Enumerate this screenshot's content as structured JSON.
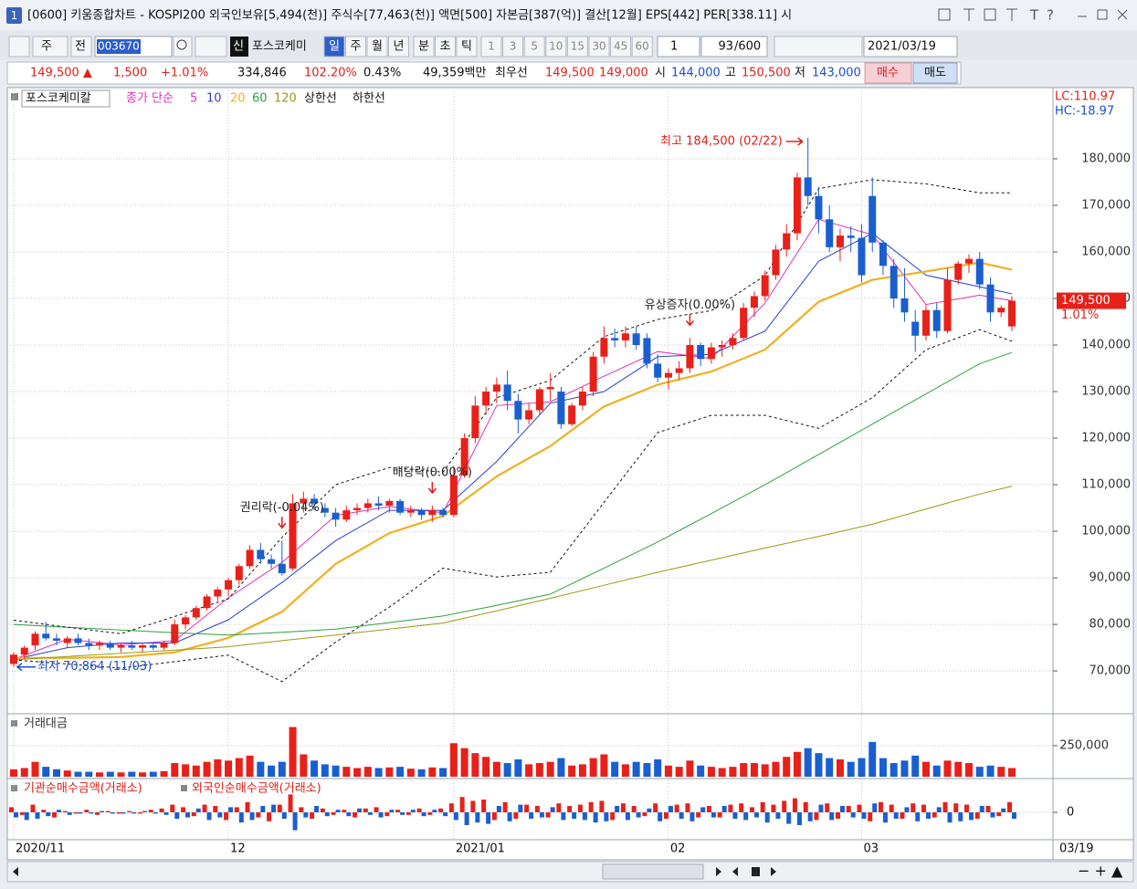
{
  "window": {
    "number": "1",
    "title": "[0600] 키움종합차트 - KOSPI200 외국인보유[5,494(천)] 주식수[77,463(천)] 액면[500] 자본금[387(억)] 결산[12월] EPS[442] PER[338.11] 시"
  },
  "toolbar": {
    "market": "주",
    "scope": "전",
    "code": "003670",
    "credit": "신",
    "name": "포스코케미",
    "periods": [
      "일",
      "주",
      "월",
      "년",
      "분",
      "초",
      "틱"
    ],
    "intervals": [
      "1",
      "3",
      "5",
      "10",
      "15",
      "30",
      "45",
      "60"
    ],
    "multiplier": "1",
    "count": "93",
    "max": "/600",
    "date": "2021/03/19"
  },
  "quote": {
    "price": "149,500 ▲",
    "change": "1,500",
    "change_pct": "+1.01%",
    "volume": "334,846",
    "volume_ratio": "102.20%",
    "turnover": "0.43%",
    "amount": "49,359백만",
    "best_label": "최우선",
    "ask": "149,500",
    "bid": "149,000",
    "open_label": "시",
    "open": "144,000",
    "high_label": "고",
    "high": "150,500",
    "low_label": "저",
    "low": "143,000",
    "buy": "매수",
    "sell": "매도"
  },
  "chart_data": {
    "type": "candlestick",
    "legend_name": "포스코케미칼",
    "ma_label": "종가 단순",
    "lc": "LC:110.97",
    "hc": "HC:-18.97",
    "up_color": "#e8201a",
    "down_color": "#1a5fd0",
    "candles": {
      "open": [
        71500,
        73500,
        75500,
        78000,
        77000,
        76000,
        77000,
        76000,
        75500,
        76000,
        75000,
        75500,
        75000,
        75500,
        75000,
        76000,
        80000,
        81500,
        83500,
        86000,
        87500,
        89500,
        92500,
        96000,
        94000,
        93000,
        92000,
        106000,
        107000,
        105000,
        104000,
        102500,
        104500,
        105000,
        106000,
        105500,
        106500,
        104000,
        104500,
        103500,
        104500,
        103500,
        112000,
        120000,
        127000,
        130000,
        131500,
        128000,
        124000,
        126000,
        130500,
        130000,
        123000,
        127000,
        130000,
        137500,
        141500,
        141000,
        142500,
        141500,
        136000,
        133000,
        134000,
        135000,
        140000,
        137000,
        139500,
        140000,
        141500,
        148000,
        150500,
        155000,
        160500,
        164000,
        176000,
        172000,
        167000,
        161000,
        163500,
        163000,
        172000,
        162000,
        157000,
        150000,
        145000,
        142000,
        147500,
        143000,
        154000,
        157500,
        158500,
        153000,
        147000,
        144000
      ],
      "high": [
        74000,
        75500,
        78500,
        80500,
        78000,
        77500,
        78000,
        77000,
        76500,
        76500,
        76000,
        76500,
        76000,
        76000,
        76500,
        81000,
        82000,
        84000,
        86500,
        88000,
        90000,
        93000,
        97000,
        97500,
        95000,
        98000,
        108000,
        108500,
        108000,
        106000,
        105000,
        105500,
        106000,
        107000,
        107500,
        107000,
        107000,
        105500,
        105000,
        105500,
        105000,
        114000,
        121000,
        129000,
        131000,
        133000,
        134500,
        129500,
        127500,
        131000,
        134000,
        131000,
        127500,
        131000,
        138500,
        144000,
        143500,
        144000,
        144000,
        142500,
        138000,
        135000,
        136500,
        141500,
        140500,
        140500,
        141000,
        142500,
        149000,
        151500,
        156000,
        161500,
        166000,
        177000,
        184500,
        174000,
        170000,
        165000,
        165500,
        166000,
        176000,
        162500,
        158500,
        156500,
        147500,
        148500,
        149000,
        156500,
        158000,
        159500,
        160000,
        154500,
        148500,
        150500
      ],
      "low": [
        70864,
        72500,
        74500,
        76500,
        75500,
        75000,
        75500,
        74500,
        74500,
        74500,
        74000,
        74500,
        74000,
        74500,
        74500,
        75500,
        79000,
        81000,
        83000,
        85000,
        86000,
        88500,
        92000,
        93000,
        92000,
        90500,
        91500,
        104000,
        104500,
        103000,
        101000,
        102000,
        103500,
        104000,
        104500,
        104000,
        103500,
        103000,
        102500,
        102000,
        103000,
        103000,
        111500,
        119000,
        125000,
        127500,
        126000,
        121000,
        123000,
        125000,
        128000,
        122000,
        122500,
        126000,
        129000,
        136000,
        139500,
        139500,
        139000,
        135000,
        132000,
        130500,
        132500,
        134000,
        135500,
        136000,
        137500,
        139000,
        141000,
        146000,
        149500,
        154000,
        159000,
        162500,
        170000,
        164000,
        160000,
        158000,
        160000,
        153500,
        160000,
        155000,
        148000,
        145000,
        138500,
        141000,
        141500,
        142500,
        153000,
        155500,
        152000,
        145000,
        146000,
        143000
      ],
      "close": [
        73500,
        75000,
        78000,
        77000,
        76500,
        77000,
        76000,
        75500,
        76000,
        75000,
        75500,
        75000,
        75500,
        75000,
        76000,
        80000,
        81500,
        83500,
        86000,
        87500,
        89500,
        92500,
        96000,
        94000,
        93000,
        91000,
        106000,
        107000,
        106000,
        104000,
        102500,
        104500,
        105000,
        106000,
        105500,
        106500,
        104000,
        104500,
        103500,
        104500,
        103500,
        112000,
        120000,
        127000,
        130000,
        131500,
        128000,
        124000,
        126000,
        130500,
        131000,
        123000,
        127000,
        130000,
        137500,
        141500,
        141000,
        142500,
        140000,
        136000,
        133000,
        134000,
        135000,
        140000,
        137000,
        139500,
        140000,
        141500,
        148000,
        150500,
        155000,
        160500,
        164000,
        176000,
        172000,
        167000,
        161000,
        163500,
        163000,
        155000,
        162000,
        157000,
        150000,
        147000,
        142000,
        147500,
        143000,
        154000,
        157500,
        158500,
        153000,
        147000,
        148000,
        149500
      ]
    },
    "ylim": [
      61200,
      189400
    ],
    "yticks": [
      {
        "value": 70000,
        "label": "70,000"
      },
      {
        "value": 80000,
        "label": "80,000"
      },
      {
        "value": 90000,
        "label": "90,000"
      },
      {
        "value": 100000,
        "label": "100,000"
      },
      {
        "value": 110000,
        "label": "110,000"
      },
      {
        "value": 120000,
        "label": "120,000"
      },
      {
        "value": 130000,
        "label": "130,000"
      },
      {
        "value": 140000,
        "label": "140,000"
      },
      {
        "value": 150000,
        "label": "150,000"
      },
      {
        "value": 160000,
        "label": "160,000"
      },
      {
        "value": 170000,
        "label": "170,000"
      },
      {
        "value": 180000,
        "label": "180,000"
      }
    ],
    "last_price_label": "149,500",
    "last_change_label": "1.01%",
    "sample_index": [
      0,
      5,
      10,
      15,
      20,
      25,
      30,
      35,
      40,
      45,
      50,
      55,
      60,
      65,
      70,
      75,
      80,
      85,
      90,
      93
    ],
    "lines": [
      {
        "name": "5",
        "color": "#e030b8",
        "dash": false,
        "values": [
          72500,
          76800,
          75600,
          76500,
          85700,
          93300,
          103400,
          105300,
          104000,
          127000,
          127800,
          133300,
          138600,
          137100,
          149000,
          167000,
          163700,
          148700,
          150700,
          149500
        ]
      },
      {
        "name": "10",
        "color": "#2d3fd0",
        "dash": false,
        "values": [
          72500,
          75000,
          76000,
          76000,
          81000,
          89000,
          98000,
          104500,
          104500,
          115000,
          127500,
          130000,
          137500,
          138000,
          143000,
          158000,
          164000,
          155000,
          152500,
          151000
        ]
      },
      {
        "name": "20",
        "color": "#f0b020",
        "dash": false,
        "values": [
          72800,
          72800,
          73000,
          74000,
          77100,
          82700,
          93000,
          99600,
          103300,
          111800,
          118300,
          126800,
          131500,
          134300,
          139000,
          149300,
          154000,
          155800,
          157700,
          156200
        ]
      },
      {
        "name": "60",
        "color": "#2fa040",
        "dash": false,
        "values": [
          80000,
          79400,
          78800,
          78200,
          77700,
          78300,
          79000,
          80400,
          81800,
          84100,
          86500,
          92100,
          97700,
          103800,
          110000,
          116500,
          123000,
          129500,
          136000,
          138400
        ]
      },
      {
        "name": "120",
        "color": "#9a9a18",
        "dash": false,
        "values": [
          72400,
          73100,
          73800,
          74500,
          75200,
          76500,
          77700,
          79000,
          80300,
          82900,
          85600,
          88400,
          91200,
          93800,
          96400,
          98900,
          101500,
          104800,
          108000,
          109700
        ]
      },
      {
        "name": "상한선",
        "color": "#111111",
        "dash": true,
        "values": [
          80900,
          79400,
          78000,
          81700,
          85500,
          98700,
          110000,
          113700,
          112700,
          128700,
          132400,
          141800,
          145500,
          147400,
          154900,
          173600,
          175500,
          174600,
          172700,
          172700
        ]
      },
      {
        "name": "하한선",
        "color": "#111111",
        "dash": true,
        "values": [
          72400,
          71500,
          70600,
          72000,
          73400,
          67700,
          76200,
          83700,
          92100,
          90200,
          91200,
          106200,
          121200,
          124900,
          124900,
          122100,
          128700,
          139000,
          143300,
          140800
        ]
      }
    ],
    "x_labels": [
      {
        "label": "2020/11",
        "index": 0
      },
      {
        "label": "12",
        "index": 20
      },
      {
        "label": "2021/01",
        "index": 41
      },
      {
        "label": "02",
        "index": 61
      },
      {
        "label": "03",
        "index": 79
      }
    ],
    "end_label": "03/19",
    "high_note": {
      "text": "최고 184,500 (02/22)",
      "index": 74
    },
    "low_note": {
      "text": "최저 70,864 (11/03)",
      "index": 0
    },
    "events": [
      {
        "text": "권리락(-0.04%)",
        "index": 25
      },
      {
        "text": "배당락(0.00%)",
        "index": 39
      },
      {
        "text": "유상증자(0.00%)",
        "index": 63
      }
    ],
    "volume": {
      "title": "거래대금",
      "ylim": [
        0,
        485000
      ],
      "yticks": [
        {
          "value": 250000,
          "label": "250,000"
        }
      ],
      "values": [
        60000,
        70000,
        120000,
        80000,
        60000,
        50000,
        40000,
        40000,
        35000,
        40000,
        35000,
        40000,
        35000,
        40000,
        45000,
        110000,
        100000,
        90000,
        120000,
        140000,
        130000,
        150000,
        170000,
        120000,
        90000,
        120000,
        400000,
        180000,
        130000,
        100000,
        90000,
        80000,
        70000,
        80000,
        70000,
        75000,
        80000,
        65000,
        60000,
        75000,
        70000,
        270000,
        230000,
        190000,
        160000,
        120000,
        110000,
        140000,
        100000,
        110000,
        120000,
        150000,
        90000,
        100000,
        150000,
        180000,
        120000,
        100000,
        120000,
        110000,
        140000,
        90000,
        80000,
        130000,
        90000,
        80000,
        70000,
        80000,
        110000,
        110000,
        100000,
        120000,
        160000,
        200000,
        230000,
        190000,
        150000,
        140000,
        120000,
        150000,
        280000,
        150000,
        110000,
        130000,
        170000,
        120000,
        90000,
        130000,
        120000,
        110000,
        80000,
        90000,
        80000,
        70000
      ]
    },
    "net": {
      "ylim": [
        -100,
        100
      ],
      "yticks": [
        0
      ],
      "series": [
        {
          "name": "기관순매수금액(거래소)",
          "color": "#e8201a",
          "values": [
            20,
            -10,
            30,
            10,
            -20,
            5,
            -5,
            10,
            -10,
            5,
            -5,
            5,
            -5,
            10,
            15,
            30,
            20,
            -15,
            30,
            25,
            -30,
            20,
            40,
            -20,
            -35,
            30,
            70,
            20,
            -25,
            15,
            -10,
            10,
            -20,
            15,
            20,
            -15,
            10,
            -10,
            15,
            -10,
            15,
            35,
            60,
            45,
            50,
            -30,
            40,
            -25,
            30,
            25,
            -20,
            35,
            25,
            30,
            40,
            45,
            -30,
            35,
            25,
            -15,
            35,
            -25,
            30,
            35,
            -20,
            25,
            -20,
            30,
            35,
            20,
            40,
            30,
            45,
            55,
            40,
            -30,
            35,
            -25,
            25,
            30,
            -35,
            40,
            30,
            -25,
            35,
            30,
            -20,
            40,
            35,
            30,
            -25,
            25,
            -15,
            40
          ]
        },
        {
          "name": "외국인순매수금액(거래소)",
          "color": "#1a5fd0",
          "values": [
            -20,
            -30,
            -25,
            -15,
            10,
            -10,
            -5,
            -5,
            5,
            -5,
            -5,
            -5,
            5,
            -5,
            -10,
            -25,
            -20,
            15,
            -30,
            -20,
            20,
            -40,
            -30,
            25,
            30,
            -25,
            -70,
            -20,
            25,
            -15,
            10,
            -15,
            15,
            -10,
            -20,
            10,
            -10,
            10,
            -15,
            10,
            -15,
            -30,
            -50,
            -40,
            -45,
            25,
            -35,
            30,
            -25,
            -20,
            20,
            -30,
            -25,
            -30,
            -40,
            -35,
            25,
            -30,
            -20,
            15,
            -35,
            25,
            -25,
            -35,
            20,
            -20,
            25,
            -25,
            -30,
            -20,
            -40,
            -25,
            -45,
            -50,
            -35,
            30,
            -30,
            25,
            -20,
            -25,
            35,
            -40,
            -25,
            20,
            -35,
            -25,
            20,
            -40,
            -35,
            -30,
            25,
            -20,
            15,
            -25
          ]
        }
      ]
    }
  }
}
